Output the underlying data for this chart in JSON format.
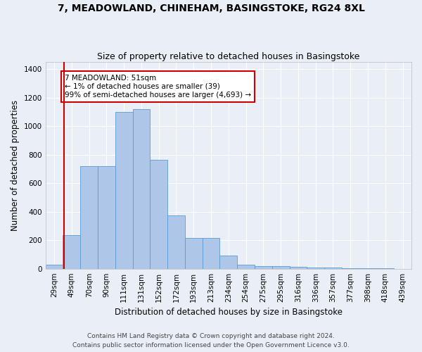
{
  "title": "7, MEADOWLAND, CHINEHAM, BASINGSTOKE, RG24 8XL",
  "subtitle": "Size of property relative to detached houses in Basingstoke",
  "xlabel": "Distribution of detached houses by size in Basingstoke",
  "ylabel": "Number of detached properties",
  "categories": [
    "29sqm",
    "49sqm",
    "70sqm",
    "90sqm",
    "111sqm",
    "131sqm",
    "152sqm",
    "172sqm",
    "193sqm",
    "213sqm",
    "234sqm",
    "254sqm",
    "275sqm",
    "295sqm",
    "316sqm",
    "336sqm",
    "357sqm",
    "377sqm",
    "398sqm",
    "418sqm",
    "439sqm"
  ],
  "values": [
    28,
    238,
    718,
    718,
    1100,
    1118,
    762,
    373,
    218,
    218,
    90,
    28,
    20,
    20,
    15,
    10,
    10,
    5,
    5,
    3,
    0
  ],
  "bar_color": "#aec6e8",
  "bar_edge_color": "#5b9bd5",
  "annotation_text": "7 MEADOWLAND: 51sqm\n← 1% of detached houses are smaller (39)\n99% of semi-detached houses are larger (4,693) →",
  "annotation_box_color": "#ffffff",
  "annotation_box_edge": "#cc0000",
  "red_line_x": 0.575,
  "ylim": [
    0,
    1450
  ],
  "yticks": [
    0,
    200,
    400,
    600,
    800,
    1000,
    1200,
    1400
  ],
  "footer": "Contains HM Land Registry data © Crown copyright and database right 2024.\nContains public sector information licensed under the Open Government Licence v3.0.",
  "bg_color": "#eaeff7",
  "plot_bg_color": "#eaeff7",
  "grid_color": "#ffffff",
  "title_fontsize": 10,
  "subtitle_fontsize": 9,
  "axis_label_fontsize": 8.5,
  "tick_fontsize": 7.5,
  "footer_fontsize": 6.5
}
